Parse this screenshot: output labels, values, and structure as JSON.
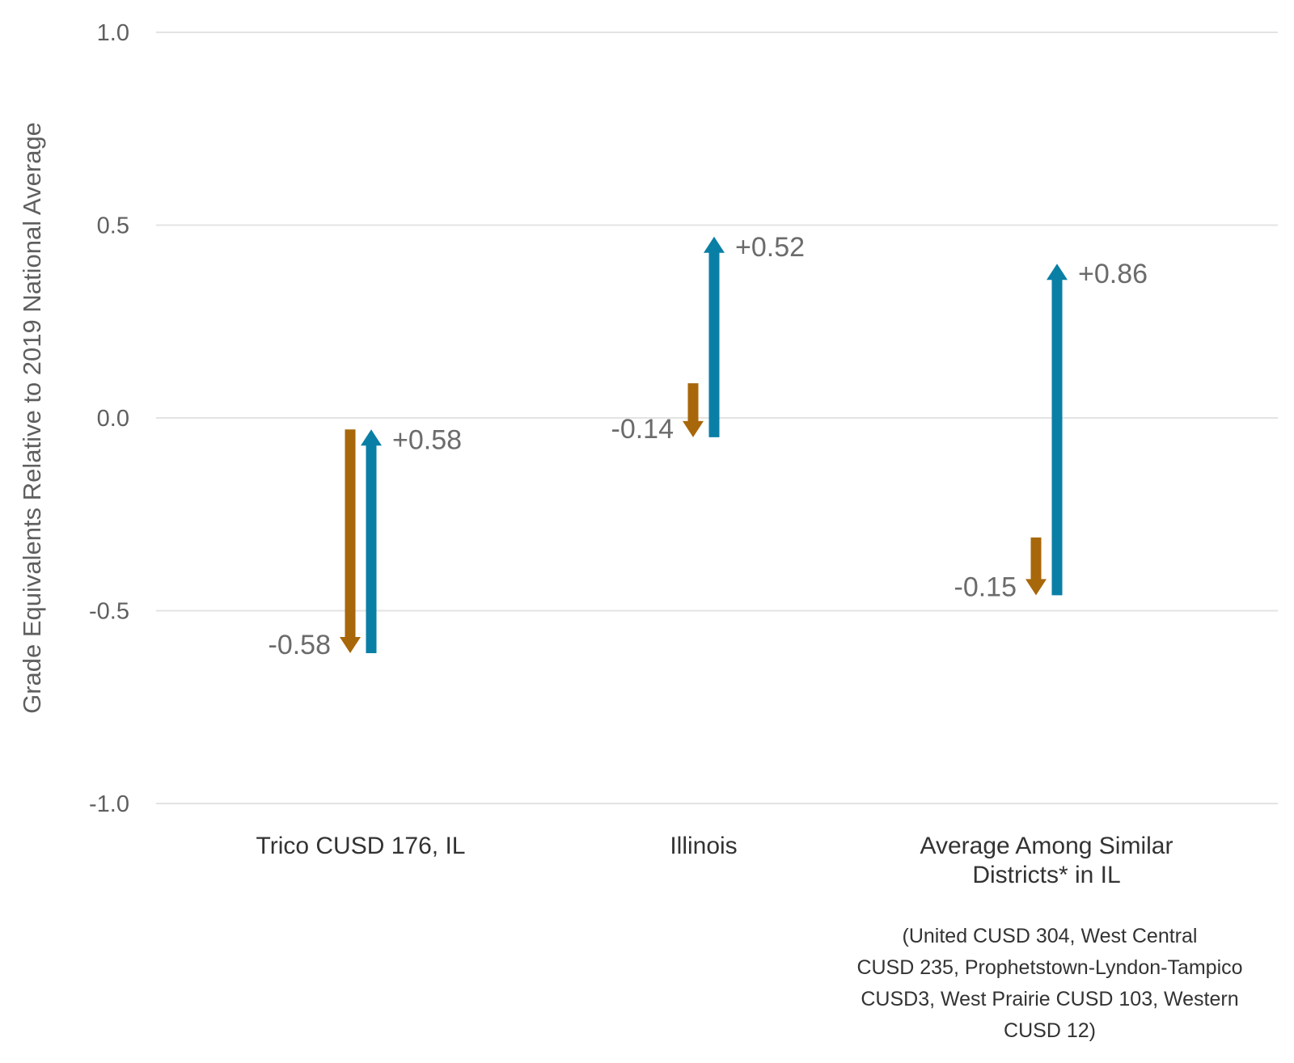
{
  "chart_data": {
    "type": "arrow",
    "ylabel": "Grade Equivalents Relative to 2019 National Average",
    "ylim": [
      -1.0,
      1.0
    ],
    "yticks": [
      {
        "value": 1.0,
        "label": "1.0"
      },
      {
        "value": 0.5,
        "label": "0.5"
      },
      {
        "value": 0.0,
        "label": "0.0"
      },
      {
        "value": -0.5,
        "label": "-0.5"
      },
      {
        "value": -1.0,
        "label": "-1.0"
      }
    ],
    "grid": true,
    "colors": {
      "decline": "#a8670a",
      "gain": "#0a7fa6"
    },
    "categories": [
      {
        "label_lines": [
          "Trico CUSD 176, IL"
        ],
        "note_lines": [],
        "decline": {
          "from": -0.03,
          "to": -0.61,
          "label": "-0.58"
        },
        "gain": {
          "from": -0.61,
          "to": -0.03,
          "label": "+0.58"
        }
      },
      {
        "label_lines": [
          "Illinois"
        ],
        "note_lines": [],
        "decline": {
          "from": 0.09,
          "to": -0.05,
          "label": "-0.14"
        },
        "gain": {
          "from": -0.05,
          "to": 0.47,
          "label": "+0.52"
        }
      },
      {
        "label_lines": [
          "Average Among Similar",
          "Districts* in IL"
        ],
        "note_lines": [
          "(United CUSD 304, West Central",
          "CUSD 235, Prophetstown-Lyndon-Tampico",
          "CUSD3, West Prairie CUSD 103, Western",
          "CUSD 12)"
        ],
        "decline": {
          "from": -0.31,
          "to": -0.46,
          "label": "-0.15"
        },
        "gain": {
          "from": -0.46,
          "to": 0.4,
          "label": "+0.86"
        }
      }
    ]
  }
}
